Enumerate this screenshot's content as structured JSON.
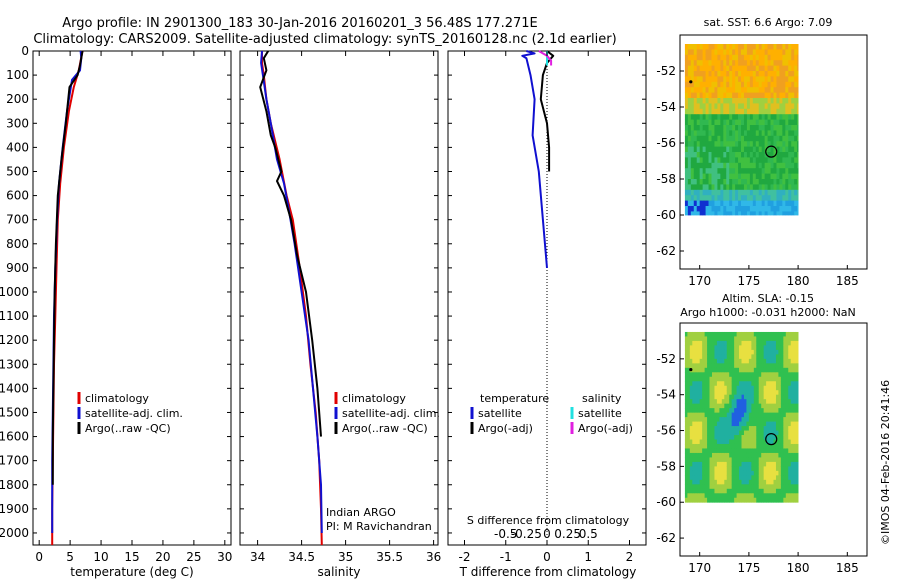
{
  "header": {
    "title_line1": "Argo profile: IN 2901300_183 30-Jan-2016 20160201_3 56.48S 177.271E",
    "title_line2": "Climatology: CARS2009. Satellite-adjusted climatology: synTS_20160128.nc (2.1d earlier)"
  },
  "colors": {
    "climatology": "#e00000",
    "satellite": "#1010d0",
    "argo": "#000000",
    "sal_satellite": "#20e0e0",
    "sal_argo": "#e020e0"
  },
  "chart_data": [
    {
      "type": "line",
      "id": "temperature",
      "xlabel": "temperature (deg C)",
      "xlim": [
        -1,
        31
      ],
      "ylim": [
        2050,
        0
      ],
      "xticks": [
        0,
        5,
        10,
        15,
        20,
        25,
        30
      ],
      "yticks": [
        0,
        100,
        200,
        300,
        400,
        500,
        600,
        700,
        800,
        900,
        1000,
        1100,
        1200,
        1300,
        1400,
        1500,
        1600,
        1700,
        1800,
        1900,
        2000
      ],
      "legend": [
        "climatology",
        "satellite-adj. clim.",
        "Argo(..raw -QC)"
      ],
      "series": [
        {
          "name": "climatology",
          "color_key": "climatology",
          "x": [
            7.0,
            6.4,
            5.6,
            4.8,
            4.0,
            3.4,
            3.0,
            2.8,
            2.6,
            2.4,
            2.3,
            2.2,
            2.1,
            2.1
          ],
          "y": [
            0,
            80,
            150,
            250,
            400,
            550,
            700,
            900,
            1100,
            1300,
            1500,
            1700,
            1900,
            2050
          ]
        },
        {
          "name": "satellite-adj. clim.",
          "color_key": "satellite",
          "x": [
            6.7,
            6.8,
            6.6,
            5.3,
            4.5,
            3.8,
            3.2,
            2.9,
            2.6,
            2.4,
            2.3,
            2.2,
            2.1,
            2.1
          ],
          "y": [
            0,
            30,
            80,
            120,
            250,
            400,
            550,
            700,
            900,
            1100,
            1300,
            1500,
            1700,
            2000
          ]
        },
        {
          "name": "Argo(..raw -QC)",
          "color_key": "argo",
          "x": [
            7.0,
            6.6,
            6.2,
            4.9,
            4.3,
            3.6,
            3.0,
            2.7,
            2.5,
            2.4,
            2.3,
            2.2,
            2.2
          ],
          "y": [
            0,
            60,
            100,
            150,
            300,
            450,
            600,
            800,
            1000,
            1200,
            1400,
            1600,
            1800
          ]
        }
      ]
    },
    {
      "type": "line",
      "id": "salinity",
      "xlabel": "salinity",
      "xlim": [
        33.8,
        36.05
      ],
      "ylim": [
        2050,
        0
      ],
      "xticks": [
        34,
        34.5,
        35,
        35.5,
        36
      ],
      "legend": [
        "climatology",
        "satellite-adj. clim.",
        "Argo(..raw -QC)"
      ],
      "annotation": [
        "Indian ARGO",
        "PI: M Ravichandran"
      ],
      "series": [
        {
          "name": "climatology",
          "color_key": "climatology",
          "x": [
            34.05,
            34.05,
            34.07,
            34.1,
            34.15,
            34.25,
            34.33,
            34.4,
            34.48,
            34.55,
            34.6,
            34.66,
            34.7,
            34.72,
            34.73
          ],
          "y": [
            0,
            50,
            100,
            200,
            300,
            450,
            600,
            700,
            900,
            1100,
            1300,
            1500,
            1700,
            1900,
            2050
          ]
        },
        {
          "name": "satellite-adj. clim.",
          "color_key": "satellite",
          "x": [
            34.05,
            34.04,
            34.06,
            34.1,
            34.15,
            34.22,
            34.3,
            34.35,
            34.42,
            34.5,
            34.58,
            34.63,
            34.68,
            34.72,
            34.73
          ],
          "y": [
            0,
            50,
            100,
            200,
            300,
            450,
            550,
            650,
            800,
            1000,
            1200,
            1400,
            1600,
            1800,
            2000
          ]
        },
        {
          "name": "Argo(..raw -QC)",
          "color_key": "argo",
          "x": [
            34.12,
            34.07,
            34.1,
            34.03,
            34.1,
            34.15,
            34.2,
            34.27,
            34.22,
            34.3,
            34.38,
            34.45,
            34.55,
            34.62,
            34.68,
            34.72
          ],
          "y": [
            0,
            30,
            80,
            150,
            250,
            350,
            400,
            500,
            540,
            600,
            700,
            850,
            1000,
            1200,
            1400,
            1600
          ]
        }
      ]
    },
    {
      "type": "line",
      "id": "difference",
      "xlabel": "T difference from climatology",
      "xlabel_top": "S difference from climatology",
      "xlim": [
        -2.4,
        2.4
      ],
      "ylim": [
        2050,
        0
      ],
      "xticks": [
        -2,
        -1,
        0,
        1,
        2
      ],
      "s_ticks": [
        -0.5,
        -0.25,
        0,
        0.25,
        0.5
      ],
      "s_scale": 2,
      "legend_t_heading": "temperature",
      "legend_s_heading": "salinity",
      "legend": [
        "satellite",
        "Argo(-adj)",
        "satellite",
        "Argo(-adj)"
      ],
      "series": [
        {
          "name": "satellite",
          "group": "temperature",
          "color_key": "satellite",
          "x": [
            -0.5,
            -0.3,
            -0.6,
            -0.5,
            -0.4,
            -0.3,
            -0.35,
            -0.2,
            -0.1,
            0.0
          ],
          "y": [
            0,
            10,
            20,
            30,
            100,
            200,
            350,
            500,
            700,
            900
          ]
        },
        {
          "name": "Argo(-adj)",
          "group": "temperature",
          "color_key": "argo",
          "x": [
            0.0,
            0.15,
            0.0,
            -0.1,
            -0.15,
            0.0,
            0.05,
            0.05
          ],
          "y": [
            0,
            20,
            50,
            100,
            200,
            300,
            400,
            500
          ]
        },
        {
          "name": "satellite",
          "group": "salinity",
          "color_key": "sal_satellite",
          "x": [
            0.0,
            0.0,
            0.0,
            0.0
          ],
          "y": [
            0,
            20,
            40,
            60
          ]
        },
        {
          "name": "Argo(-adj)",
          "group": "salinity",
          "color_key": "sal_argo",
          "x": [
            -0.1,
            0.0,
            0.05,
            0.05
          ],
          "y": [
            0,
            20,
            40,
            60
          ]
        }
      ]
    },
    {
      "type": "heatmap",
      "id": "sst-map",
      "title": "sat. SST: 6.6 Argo: 7.09",
      "xlim": [
        168,
        187
      ],
      "ylim": [
        -63,
        -50
      ],
      "xticks": [
        170,
        175,
        180,
        185
      ],
      "yticks": [
        -52,
        -54,
        -56,
        -58,
        -60,
        -62
      ],
      "data_extent": {
        "lon": [
          168.5,
          180
        ],
        "lat": [
          -60,
          -50.5
        ]
      },
      "argo_position": {
        "lon": 177.27,
        "lat": -56.48
      },
      "start_position": {
        "lon": 169.1,
        "lat": -52.6
      }
    },
    {
      "type": "heatmap",
      "id": "sla-map",
      "title": "Altim. SLA: -0.15",
      "subtitle": "Argo h1000: -0.031 h2000: NaN",
      "xlim": [
        168,
        187
      ],
      "ylim": [
        -63,
        -50
      ],
      "xticks": [
        170,
        175,
        180,
        185
      ],
      "yticks": [
        -52,
        -54,
        -56,
        -58,
        -60,
        -62
      ],
      "data_extent": {
        "lon": [
          168.5,
          180
        ],
        "lat": [
          -60,
          -50.5
        ]
      },
      "argo_position": {
        "lon": 177.27,
        "lat": -56.48
      },
      "start_position": {
        "lon": 169.1,
        "lat": -52.6
      }
    }
  ],
  "footer": {
    "stamp": "©IMOS 04-Feb-2016 20:41:46"
  }
}
